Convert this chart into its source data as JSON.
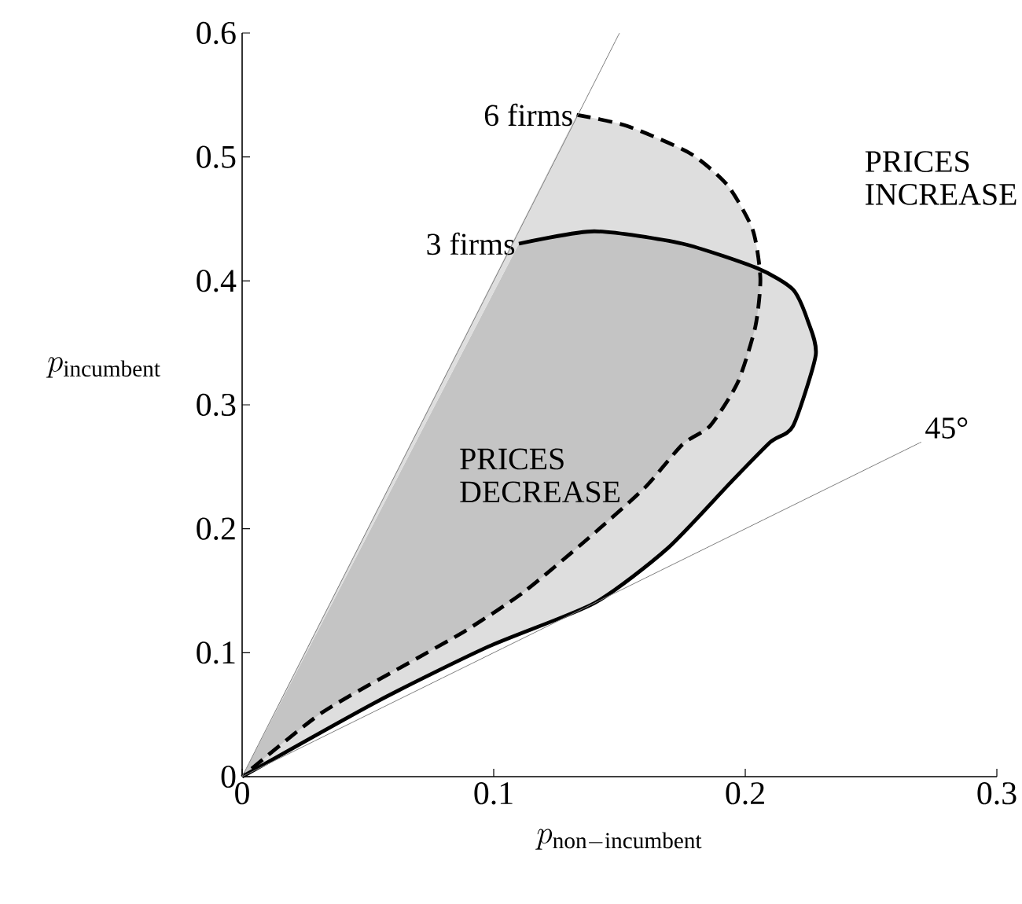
{
  "chart_data": {
    "type": "line",
    "xlabel": "p_{\\mathrm{non-incumbent}}",
    "ylabel": "p_{\\mathrm{incumbent}}",
    "xlim": [
      0,
      0.3
    ],
    "ylim": [
      0,
      0.6
    ],
    "xticks": [
      0,
      0.1,
      0.2,
      0.3
    ],
    "yticks": [
      0,
      0.1,
      0.2,
      0.3,
      0.4,
      0.5,
      0.6
    ],
    "series": [
      {
        "name": "3 firms",
        "color": "#000000",
        "line_style": "solid",
        "x": [
          0.11,
          0.14,
          0.175,
          0.205,
          0.219,
          0.225,
          0.228,
          0.219,
          0.21,
          0.194,
          0.169,
          0.14,
          0.098,
          0.054,
          0
        ],
        "values": [
          0.43,
          0.44,
          0.43,
          0.41,
          0.393,
          0.367,
          0.34,
          0.283,
          0.27,
          0.237,
          0.184,
          0.14,
          0.105,
          0.061,
          0
        ]
      },
      {
        "name": "6 firms",
        "color": "#000000",
        "line_style": "dashed",
        "x": [
          0.133,
          0.153,
          0.178,
          0.193,
          0.203,
          0.206,
          0.204,
          0.197,
          0.186,
          0.175,
          0.16,
          0.138,
          0.112,
          0.089,
          0.07,
          0.032,
          0
        ],
        "values": [
          0.534,
          0.525,
          0.503,
          0.477,
          0.441,
          0.402,
          0.363,
          0.318,
          0.283,
          0.268,
          0.233,
          0.193,
          0.149,
          0.118,
          0.096,
          0.052,
          0
        ]
      },
      {
        "color": "#808080",
        "line_style": "solid",
        "x": [
          0,
          0.15
        ],
        "values": [
          0,
          0.6
        ]
      },
      {
        "name": "45°",
        "color": "#808080",
        "line_style": "solid",
        "x": [
          0,
          0.27
        ],
        "values": [
          0,
          0.27
        ]
      }
    ],
    "annotations": [
      "PRICES INCREASE",
      "PRICES DECREASE"
    ]
  }
}
